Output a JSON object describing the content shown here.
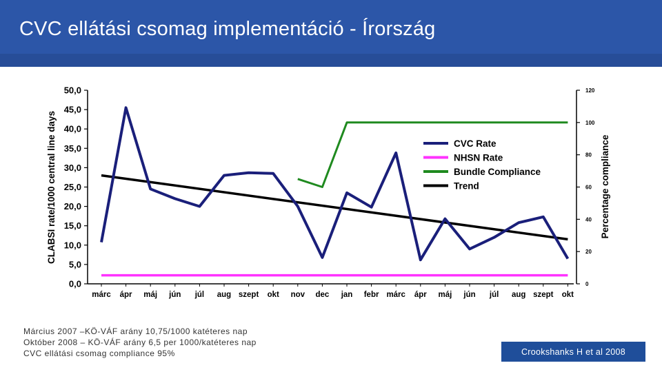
{
  "slide": {
    "title": "CVC ellátási csomag implementáció - Írország",
    "notes": [
      "Március  2007 –KÖ-VÁF arány 10,75/1000 katéteres nap",
      "Október 2008 – KÖ-VÁF arány 6,5 per 1000/katéteres nap",
      " CVC ellátási csomag compliance 95%"
    ],
    "citation": "Crookshanks  H et al 2008"
  },
  "colors": {
    "banner": "#2c56a8",
    "cvc": "#1a1f7a",
    "nhsn": "#ff33ff",
    "bundle": "#1f8a1f",
    "trend": "#000000"
  },
  "chart_data": {
    "type": "line",
    "ylabel": "CLABSI  rate/1000 central line days",
    "y2label": "Percentage compliance",
    "ylim": [
      0,
      50
    ],
    "y2lim": [
      0,
      120
    ],
    "yticks": [
      "0,0",
      "5,0",
      "10,0",
      "15,0",
      "20,0",
      "25,0",
      "30,0",
      "35,0",
      "40,0",
      "45,0",
      "50,0"
    ],
    "y2ticks": [
      "0",
      "20",
      "40",
      "60",
      "80",
      "100",
      "120"
    ],
    "categories": [
      "márc",
      "ápr",
      "máj",
      "jún",
      "júl",
      "aug",
      "szept",
      "okt",
      "nov",
      "dec",
      "jan",
      "febr",
      "márc",
      "ápr",
      "máj",
      "jún",
      "júl",
      "aug",
      "szept",
      "okt"
    ],
    "legend_position": "upper-right",
    "series": [
      {
        "name": "CVC Rate",
        "axis": "left",
        "values": [
          10.75,
          45.5,
          24.5,
          22.0,
          20.0,
          28.0,
          28.7,
          28.5,
          20.0,
          6.8,
          23.5,
          19.8,
          33.8,
          6.2,
          16.8,
          9.0,
          12.0,
          15.8,
          17.3,
          6.5
        ]
      },
      {
        "name": "NHSN Rate",
        "axis": "left",
        "values": [
          2.2,
          2.2,
          2.2,
          2.2,
          2.2,
          2.2,
          2.2,
          2.2,
          2.2,
          2.2,
          2.2,
          2.2,
          2.2,
          2.2,
          2.2,
          2.2,
          2.2,
          2.2,
          2.2,
          2.2
        ]
      },
      {
        "name": "Bundle Compliance",
        "axis": "right",
        "values": [
          null,
          null,
          null,
          null,
          null,
          null,
          null,
          null,
          65,
          60,
          100,
          100,
          100,
          100,
          100,
          100,
          100,
          100,
          100,
          100
        ]
      },
      {
        "name": "Trend",
        "axis": "left",
        "values": [
          28.0,
          null,
          null,
          null,
          null,
          null,
          null,
          null,
          null,
          null,
          null,
          null,
          null,
          null,
          null,
          null,
          null,
          null,
          null,
          11.5
        ]
      }
    ]
  }
}
